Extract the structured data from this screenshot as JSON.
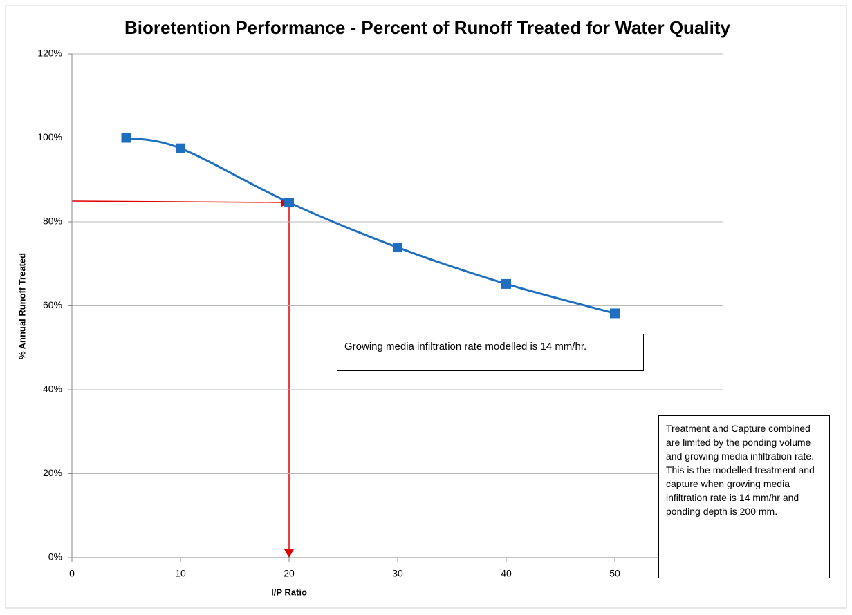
{
  "chart_data": {
    "type": "line",
    "title": "Bioretention Performance - Percent of Runoff Treated for Water Quality",
    "xlabel": "I/P Ratio",
    "ylabel": "% Annual Runoff Treated",
    "x": [
      5,
      10,
      20,
      30,
      40,
      50
    ],
    "series": [
      {
        "name": "% Annual Runoff Treated",
        "color": "#1f6fc0",
        "values": [
          100,
          97.5,
          84.6,
          73.9,
          65.2,
          58.2
        ]
      }
    ],
    "xlim": [
      0,
      60
    ],
    "xticks": [
      0,
      10,
      20,
      30,
      40,
      50
    ],
    "ylim": [
      0,
      120
    ],
    "yticks": [
      {
        "value": 0,
        "label": "0%"
      },
      {
        "value": 20,
        "label": "20%"
      },
      {
        "value": 40,
        "label": "40%"
      },
      {
        "value": 60,
        "label": "60%"
      },
      {
        "value": 80,
        "label": "80%"
      },
      {
        "value": 100,
        "label": "100%"
      },
      {
        "value": 120,
        "label": "120%"
      }
    ],
    "grid": true,
    "annotations": [
      "Growing media infiltration rate modelled is 14 mm/hr.",
      "Treatment and Capture combined are limited by the ponding volume and growing media infiltration rate. This is the modelled treatment and capture when growing media infiltration rate is 14 mm/hr and ponding depth is 200 mm."
    ]
  }
}
